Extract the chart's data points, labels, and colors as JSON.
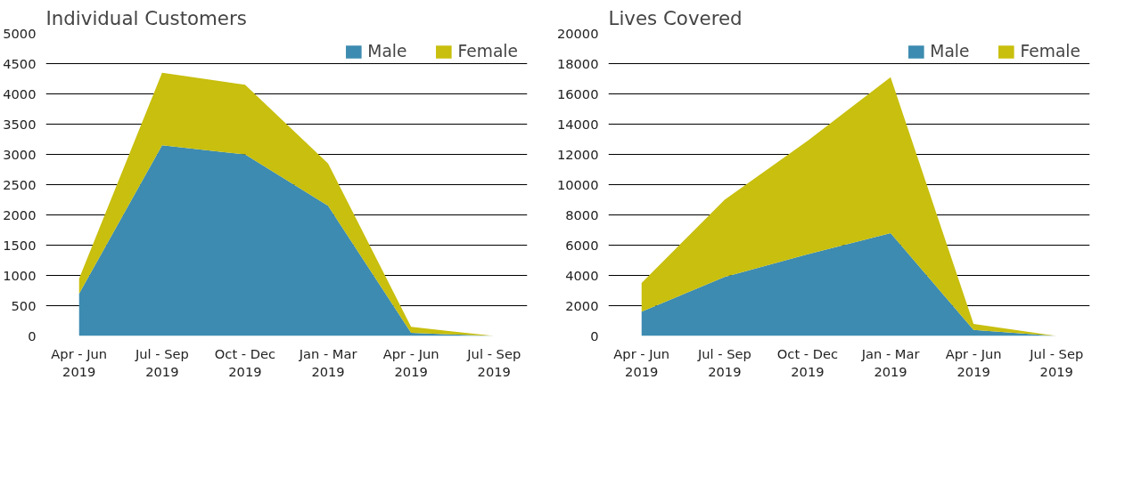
{
  "chart_data": [
    {
      "type": "area",
      "title": "Individual Customers",
      "stacked": true,
      "categories": [
        "Apr - Jun\n2019",
        "Jul - Sep\n2019",
        "Oct - Dec\n2019",
        "Jan - Mar\n2019",
        "Apr - Jun\n2019",
        "Jul - Sep\n2019"
      ],
      "series": [
        {
          "name": "Male",
          "color": "#3d8bb0",
          "values": [
            700,
            3150,
            3000,
            2150,
            50,
            0
          ]
        },
        {
          "name": "Female",
          "color": "#c8bf0e",
          "values": [
            250,
            1200,
            1150,
            700,
            100,
            0
          ]
        }
      ],
      "ylim": [
        0,
        5000
      ],
      "yticks": [
        0,
        500,
        1000,
        1500,
        2000,
        2500,
        3000,
        3500,
        4000,
        4500,
        5000
      ],
      "grid": "y",
      "legend": "top right"
    },
    {
      "type": "area",
      "title": "Lives Covered",
      "stacked": true,
      "categories": [
        "Apr - Jun\n2019",
        "Jul - Sep\n2019",
        "Oct - Dec\n2019",
        "Jan - Mar\n2019",
        "Apr - Jun\n2019",
        "Jul - Sep\n2019"
      ],
      "series": [
        {
          "name": "Male",
          "color": "#3d8bb0",
          "values": [
            1600,
            3900,
            5400,
            6800,
            400,
            0
          ]
        },
        {
          "name": "Female",
          "color": "#c8bf0e",
          "values": [
            1900,
            5100,
            7500,
            10300,
            400,
            0
          ]
        }
      ],
      "ylim": [
        0,
        20000
      ],
      "yticks": [
        0,
        2000,
        4000,
        6000,
        8000,
        10000,
        12000,
        14000,
        16000,
        18000,
        20000
      ],
      "grid": "y",
      "legend": "top right"
    }
  ]
}
